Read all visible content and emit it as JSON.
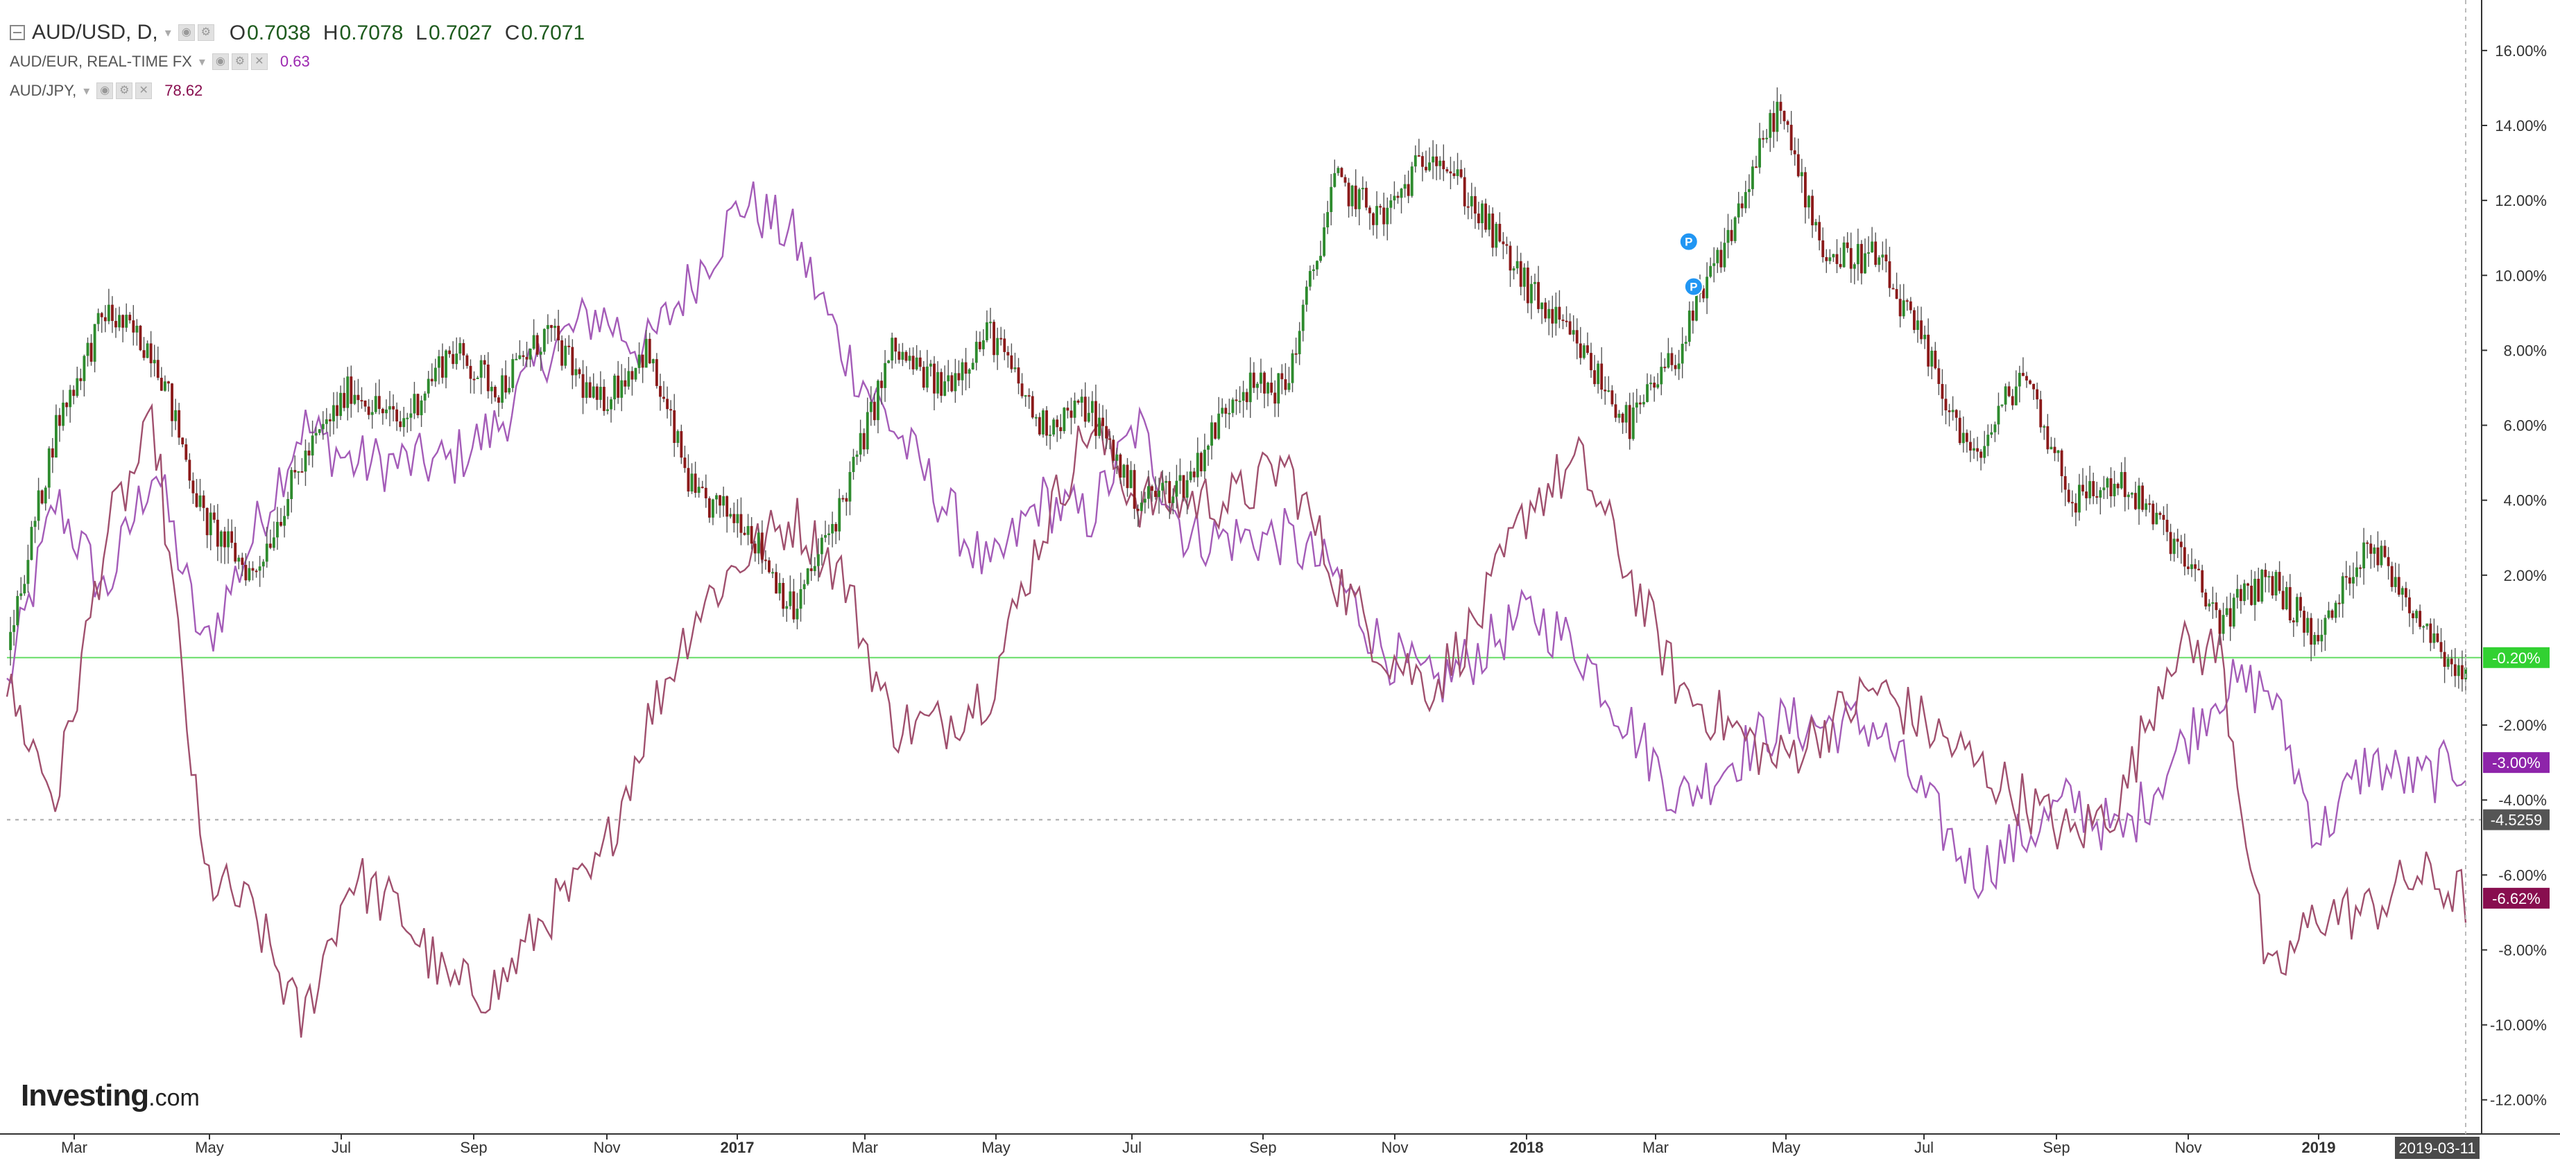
{
  "legend": {
    "main": {
      "symbol": "AUD/USD, D,",
      "open_label": "O",
      "open": "0.7038",
      "high_label": "H",
      "high": "0.7078",
      "low_label": "L",
      "low": "0.7027",
      "close_label": "C",
      "close": "0.7071"
    },
    "compare1": {
      "symbol": "AUD/EUR, REAL-TIME FX",
      "value": "0.63",
      "color": "#9c27b0"
    },
    "compare2": {
      "symbol": "AUD/JPY,",
      "value": "78.62",
      "color": "#880e4f"
    }
  },
  "icons": {
    "collapse": "collapse-icon",
    "settings": "gear-icon",
    "visibility": "eye-icon",
    "remove": "close-icon",
    "dropdown": "chevron-down-icon"
  },
  "brand": {
    "name": "Investing",
    "domain": ".com"
  },
  "colors": {
    "up": "#2e8b2e",
    "down": "#8b1a1a",
    "wick": "#555555",
    "aud_eur": "#a45cb8",
    "aud_jpy": "#a0506e",
    "zero_line": "#66dd66",
    "price_tag": "#444444"
  },
  "chart_data": {
    "type": "line",
    "title": "AUD/USD, D,",
    "ylabel": "",
    "y_unit": "percent change",
    "ylim": [
      -12.8,
      17.2
    ],
    "y_ticks": [
      "16.00%",
      "14.00%",
      "12.00%",
      "10.00%",
      "8.00%",
      "6.00%",
      "4.00%",
      "2.00%",
      "-2.00%",
      "-4.00%",
      "-6.00%",
      "-8.00%",
      "-10.00%",
      "-12.00%"
    ],
    "x_ticks": [
      "Mar",
      "May",
      "Jul",
      "Sep",
      "Nov",
      "2017",
      "Mar",
      "May",
      "Jul",
      "Sep",
      "Nov",
      "2018",
      "Mar",
      "May",
      "Jul",
      "Sep",
      "Nov",
      "2019"
    ],
    "bold_x_ticks": [
      "2017",
      "2018",
      "2019"
    ],
    "cursor_date": "2019-03-11",
    "grid": false,
    "last_value_tags": [
      {
        "label": "-0.20%",
        "value": -0.2,
        "color": "#32d132"
      },
      {
        "label": "-3.00%",
        "value": -3.0,
        "color": "#8e24aa"
      },
      {
        "label": "-4.5259",
        "value": -4.5259,
        "color": "#555555"
      },
      {
        "label": "-6.62%",
        "value": -6.62,
        "color": "#880e4f"
      }
    ],
    "zero_line_value": -0.2,
    "crosshair_value": -4.5259,
    "markers": [
      {
        "label": "P",
        "x": 0.684,
        "y": 10.9
      },
      {
        "label": "P",
        "x": 0.686,
        "y": 9.7
      }
    ],
    "series": [
      {
        "name": "AUD/USD",
        "style": "candlestick",
        "x": [
          0,
          0.02,
          0.04,
          0.06,
          0.08,
          0.1,
          0.12,
          0.14,
          0.16,
          0.18,
          0.2,
          0.22,
          0.24,
          0.26,
          0.28,
          0.3,
          0.32,
          0.34,
          0.36,
          0.38,
          0.4,
          0.42,
          0.44,
          0.46,
          0.48,
          0.5,
          0.52,
          0.54,
          0.56,
          0.58,
          0.6,
          0.62,
          0.64,
          0.66,
          0.68,
          0.7,
          0.72,
          0.74,
          0.76,
          0.78,
          0.8,
          0.82,
          0.84,
          0.86,
          0.88,
          0.9,
          0.92,
          0.94,
          0.96,
          0.98,
          1
        ],
        "y": [
          0,
          6,
          9,
          8,
          3.5,
          2,
          5,
          7,
          6,
          8,
          7,
          8.5,
          6.5,
          8,
          4,
          3.5,
          1,
          4,
          8,
          7,
          8.5,
          6,
          6.5,
          4,
          4.5,
          7,
          7,
          12.5,
          11.5,
          13.5,
          11.5,
          9.5,
          8,
          6,
          8,
          11,
          14.5,
          10.5,
          10.5,
          8,
          5,
          7.5,
          4,
          4.5,
          3,
          0.8,
          2,
          0.2,
          3,
          1,
          -0.8
        ]
      },
      {
        "name": "AUD/EUR",
        "style": "line",
        "x": [
          0,
          0.02,
          0.04,
          0.06,
          0.08,
          0.1,
          0.12,
          0.14,
          0.16,
          0.18,
          0.2,
          0.22,
          0.24,
          0.26,
          0.28,
          0.3,
          0.32,
          0.34,
          0.36,
          0.38,
          0.4,
          0.42,
          0.44,
          0.46,
          0.48,
          0.5,
          0.52,
          0.54,
          0.56,
          0.58,
          0.6,
          0.62,
          0.64,
          0.66,
          0.68,
          0.7,
          0.72,
          0.74,
          0.76,
          0.78,
          0.8,
          0.82,
          0.84,
          0.86,
          0.88,
          0.9,
          0.92,
          0.94,
          0.96,
          0.98,
          1
        ],
        "y": [
          -1,
          4,
          1.5,
          5,
          0,
          3,
          6,
          5,
          5,
          5,
          6,
          8,
          9,
          8,
          10,
          12,
          11,
          8,
          6,
          4,
          2,
          4,
          3.5,
          6,
          3,
          3,
          3,
          2,
          0,
          -1,
          0,
          1,
          0,
          -2,
          -4,
          -3,
          -2,
          -2,
          -2,
          -4,
          -6,
          -5,
          -4,
          -5,
          -3,
          -1,
          -1,
          -5,
          -3,
          -3.5,
          -3
        ]
      },
      {
        "name": "AUD/JPY",
        "style": "line",
        "x": [
          0,
          0.02,
          0.04,
          0.06,
          0.08,
          0.1,
          0.12,
          0.14,
          0.16,
          0.18,
          0.2,
          0.22,
          0.24,
          0.26,
          0.28,
          0.3,
          0.32,
          0.34,
          0.36,
          0.38,
          0.4,
          0.42,
          0.44,
          0.46,
          0.48,
          0.5,
          0.52,
          0.54,
          0.56,
          0.58,
          0.6,
          0.62,
          0.64,
          0.66,
          0.68,
          0.7,
          0.72,
          0.74,
          0.76,
          0.78,
          0.8,
          0.82,
          0.84,
          0.86,
          0.88,
          0.9,
          0.92,
          0.94,
          0.96,
          0.98,
          1
        ],
        "y": [
          -1,
          -4,
          3,
          6,
          -6,
          -7,
          -10,
          -6,
          -7,
          -9,
          -9,
          -7,
          -6,
          -2,
          1,
          2.5,
          3.5,
          2,
          -2,
          -2,
          -1,
          3,
          6,
          4,
          4,
          4,
          5,
          2,
          0,
          -1,
          1,
          4,
          5,
          2,
          -1,
          -2,
          -3,
          -2,
          -1,
          -2,
          -3,
          -4,
          -5,
          -4,
          0,
          0,
          -9,
          -7,
          -7,
          -6,
          -6.6
        ]
      }
    ]
  }
}
